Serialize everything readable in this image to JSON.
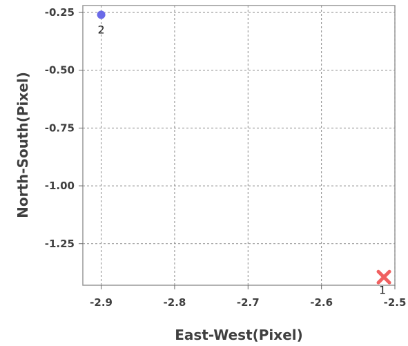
{
  "chart_data": {
    "type": "scatter",
    "title": "",
    "xlabel": "East-West(Pixel)",
    "ylabel": "North-South(Pixel)",
    "xlim": [
      -2.925,
      -2.5
    ],
    "ylim": [
      -1.43,
      -0.22
    ],
    "xticks": [
      -2.9,
      -2.8,
      -2.7,
      -2.6,
      -2.5
    ],
    "xtick_labels": [
      "-2.9",
      "-2.8",
      "-2.7",
      "-2.6",
      "-2.5"
    ],
    "yticks": [
      -0.25,
      -0.5,
      -0.75,
      -1.0,
      -1.25
    ],
    "ytick_labels": [
      "-0.25",
      "-0.50",
      "-0.75",
      "-1.00",
      "-1.25"
    ],
    "grid": true,
    "points": [
      {
        "label": "2",
        "x": -2.9,
        "y": -0.26,
        "marker": "circle",
        "color": "#6a6ae8"
      },
      {
        "label": "1",
        "x": -2.515,
        "y": -1.395,
        "marker": "x",
        "color": "#f06060"
      }
    ]
  }
}
